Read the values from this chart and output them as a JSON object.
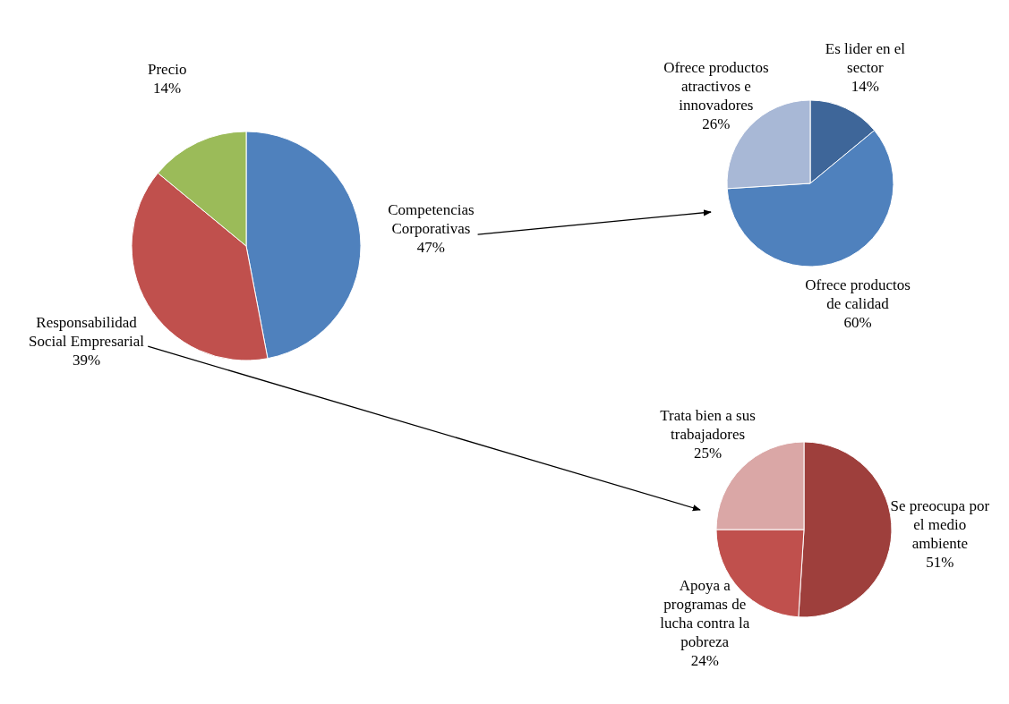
{
  "chart_data": [
    {
      "type": "pie",
      "categories": [
        "Competencias Corporativas",
        "Responsabilidad Social Empresarial",
        "Precio"
      ],
      "values": [
        47,
        39,
        14
      ],
      "colors": [
        "#4f81bd",
        "#c0504d",
        "#9bbb59"
      ],
      "value_labels": [
        "47%",
        "39%",
        "14%"
      ]
    },
    {
      "type": "pie",
      "categories": [
        "Es lider en el sector",
        "Ofrece productos de calidad",
        "Ofrece productos atractivos e innovadores"
      ],
      "values": [
        14,
        60,
        26
      ],
      "colors": [
        "#3e6699",
        "#4f81bd",
        "#a8b8d6"
      ],
      "value_labels": [
        "14%",
        "60%",
        "26%"
      ]
    },
    {
      "type": "pie",
      "categories": [
        "Se preocupa por el medio ambiente",
        "Apoya a programas de lucha contra la pobreza",
        "Trata bien a sus trabajadores"
      ],
      "values": [
        51,
        24,
        25
      ],
      "colors": [
        "#9e3f3c",
        "#c0504d",
        "#daa7a6"
      ],
      "value_labels": [
        "51%",
        "24%",
        "25%"
      ]
    }
  ]
}
